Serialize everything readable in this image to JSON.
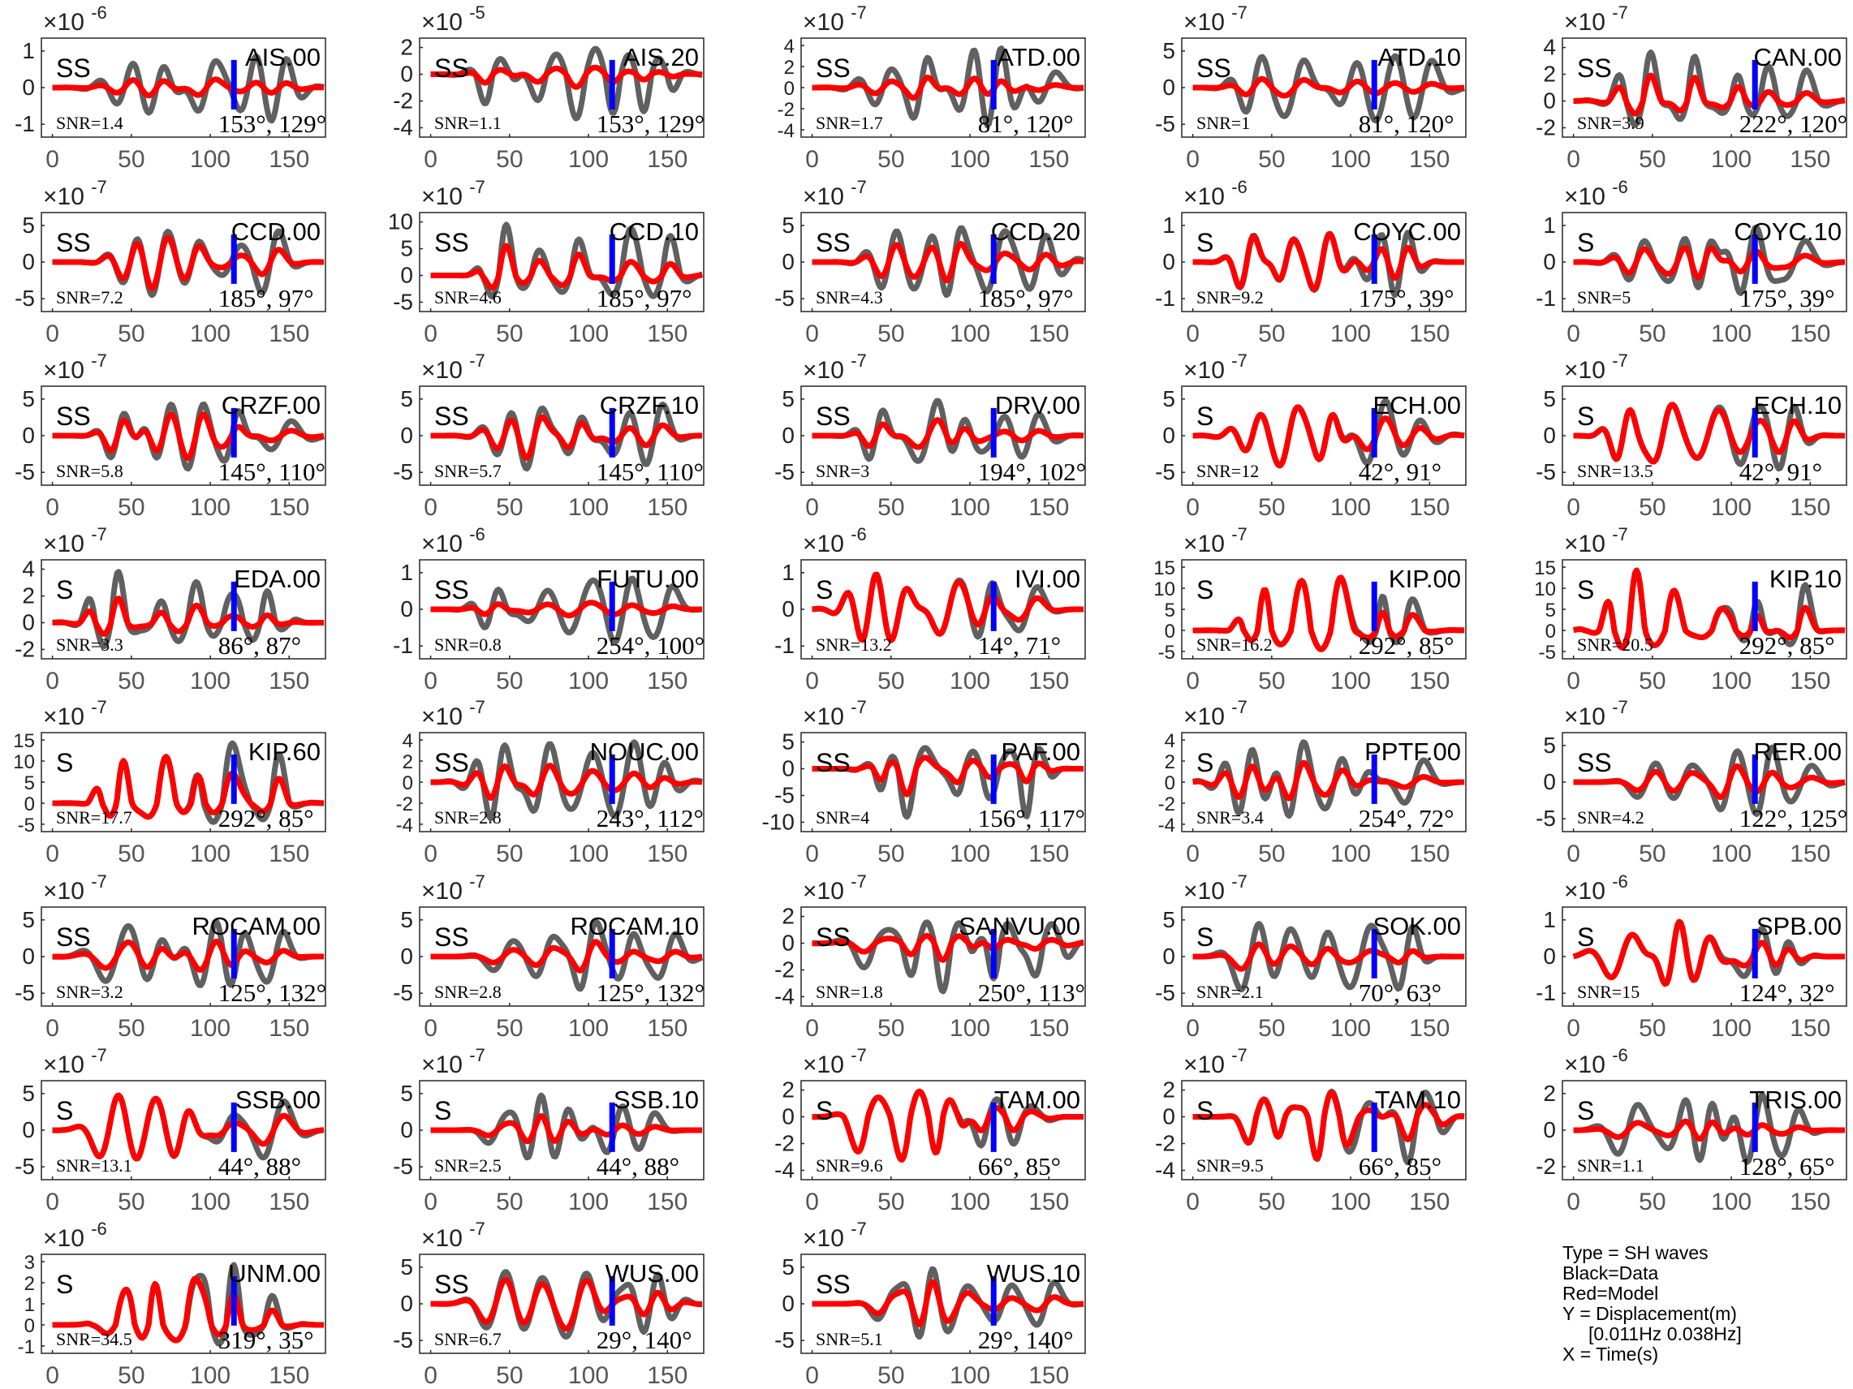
{
  "chart_data": {
    "type": "line",
    "x_ticks": [
      0,
      50,
      100,
      150
    ],
    "xlim": [
      -7,
      173
    ],
    "marker_time": 115,
    "series_colors": {
      "data": "#606060",
      "model": "#ff0000",
      "marker": "#0000ff"
    },
    "panels": [
      {
        "station": "AIS.00",
        "phase": "SS",
        "exp": "-6",
        "yticks": [
          1,
          0,
          -1
        ],
        "snr": "SNR=1.4",
        "angles": "153°, 129°"
      },
      {
        "station": "AIS.20",
        "phase": "SS",
        "exp": "-5",
        "yticks": [
          2,
          0,
          -2,
          -4
        ],
        "snr": "SNR=1.1",
        "angles": "153°, 129°"
      },
      {
        "station": "ATD.00",
        "phase": "SS",
        "exp": "-7",
        "yticks": [
          4,
          2,
          0,
          -2,
          -4
        ],
        "snr": "SNR=1.7",
        "angles": "81°, 120°"
      },
      {
        "station": "ATD.10",
        "phase": "SS",
        "exp": "-7",
        "yticks": [
          5,
          0,
          -5
        ],
        "snr": "SNR=1",
        "angles": "81°, 120°"
      },
      {
        "station": "CAN.00",
        "phase": "SS",
        "exp": "-7",
        "yticks": [
          4,
          2,
          0,
          -2
        ],
        "snr": "SNR=3.9",
        "angles": "222°, 120°"
      },
      {
        "station": "CCD.00",
        "phase": "SS",
        "exp": "-7",
        "yticks": [
          5,
          0,
          -5
        ],
        "snr": "SNR=7.2",
        "angles": "185°, 97°"
      },
      {
        "station": "CCD.10",
        "phase": "SS",
        "exp": "-7",
        "yticks": [
          10,
          5,
          0,
          -5
        ],
        "snr": "SNR=4.6",
        "angles": "185°, 97°"
      },
      {
        "station": "CCD.20",
        "phase": "SS",
        "exp": "-7",
        "yticks": [
          5,
          0,
          -5
        ],
        "snr": "SNR=4.3",
        "angles": "185°, 97°"
      },
      {
        "station": "COYC.00",
        "phase": "S",
        "exp": "-6",
        "yticks": [
          1,
          0,
          -1
        ],
        "snr": "SNR=9.2",
        "angles": "175°, 39°"
      },
      {
        "station": "COYC.10",
        "phase": "S",
        "exp": "-6",
        "yticks": [
          1,
          0,
          -1
        ],
        "snr": "SNR=5",
        "angles": "175°, 39°"
      },
      {
        "station": "CRZF.00",
        "phase": "SS",
        "exp": "-7",
        "yticks": [
          5,
          0,
          -5
        ],
        "snr": "SNR=5.8",
        "angles": "145°, 110°"
      },
      {
        "station": "CRZF.10",
        "phase": "SS",
        "exp": "-7",
        "yticks": [
          5,
          0,
          -5
        ],
        "snr": "SNR=5.7",
        "angles": "145°, 110°"
      },
      {
        "station": "DRV.00",
        "phase": "SS",
        "exp": "-7",
        "yticks": [
          5,
          0,
          -5
        ],
        "snr": "SNR=3",
        "angles": "194°, 102°"
      },
      {
        "station": "ECH.00",
        "phase": "S",
        "exp": "-7",
        "yticks": [
          5,
          0,
          -5
        ],
        "snr": "SNR=12",
        "angles": "42°, 91°"
      },
      {
        "station": "ECH.10",
        "phase": "S",
        "exp": "-7",
        "yticks": [
          5,
          0,
          -5
        ],
        "snr": "SNR=13.5",
        "angles": "42°, 91°"
      },
      {
        "station": "EDA.00",
        "phase": "S",
        "exp": "-7",
        "yticks": [
          4,
          2,
          0,
          -2
        ],
        "snr": "SNR=3.3",
        "angles": "86°, 87°"
      },
      {
        "station": "FUTU.00",
        "phase": "SS",
        "exp": "-6",
        "yticks": [
          1,
          0,
          -1
        ],
        "snr": "SNR=0.8",
        "angles": "254°, 100°"
      },
      {
        "station": "IVI.00",
        "phase": "S",
        "exp": "-6",
        "yticks": [
          1,
          0,
          -1
        ],
        "snr": "SNR=13.2",
        "angles": "14°, 71°"
      },
      {
        "station": "KIP.00",
        "phase": "S",
        "exp": "-7",
        "yticks": [
          15,
          10,
          5,
          0,
          -5
        ],
        "snr": "SNR=16.2",
        "angles": "292°, 85°"
      },
      {
        "station": "KIP.10",
        "phase": "S",
        "exp": "-7",
        "yticks": [
          15,
          10,
          5,
          0,
          -5
        ],
        "snr": "SNR=20.5",
        "angles": "292°, 85°"
      },
      {
        "station": "KIP.60",
        "phase": "S",
        "exp": "-7",
        "yticks": [
          15,
          10,
          5,
          0,
          -5
        ],
        "snr": "SNR=17.7",
        "angles": "292°, 85°"
      },
      {
        "station": "NOUC.00",
        "phase": "SS",
        "exp": "-7",
        "yticks": [
          4,
          2,
          0,
          -2,
          -4
        ],
        "snr": "SNR=2.8",
        "angles": "243°, 112°"
      },
      {
        "station": "PAF.00",
        "phase": "SS",
        "exp": "-7",
        "yticks": [
          5,
          0,
          -5,
          -10
        ],
        "snr": "SNR=4",
        "angles": "156°, 117°"
      },
      {
        "station": "PPTF.00",
        "phase": "S",
        "exp": "-7",
        "yticks": [
          4,
          2,
          0,
          -2,
          -4
        ],
        "snr": "SNR=3.4",
        "angles": "254°, 72°"
      },
      {
        "station": "RER.00",
        "phase": "SS",
        "exp": "-7",
        "yticks": [
          5,
          0,
          -5
        ],
        "snr": "SNR=4.2",
        "angles": "122°, 125°"
      },
      {
        "station": "ROCAM.00",
        "phase": "SS",
        "exp": "-7",
        "yticks": [
          5,
          0,
          -5
        ],
        "snr": "SNR=3.2",
        "angles": "125°, 132°"
      },
      {
        "station": "ROCAM.10",
        "phase": "SS",
        "exp": "-7",
        "yticks": [
          5,
          0,
          -5
        ],
        "snr": "SNR=2.8",
        "angles": "125°, 132°"
      },
      {
        "station": "SANVU.00",
        "phase": "SS",
        "exp": "-7",
        "yticks": [
          2,
          0,
          -2,
          -4
        ],
        "snr": "SNR=1.8",
        "angles": "250°, 113°"
      },
      {
        "station": "SOK.00",
        "phase": "S",
        "exp": "-7",
        "yticks": [
          5,
          0,
          -5
        ],
        "snr": "SNR=2.1",
        "angles": "70°, 63°"
      },
      {
        "station": "SPB.00",
        "phase": "S",
        "exp": "-6",
        "yticks": [
          1,
          0,
          -1
        ],
        "snr": "SNR=15",
        "angles": "124°, 32°"
      },
      {
        "station": "SSB.00",
        "phase": "S",
        "exp": "-7",
        "yticks": [
          5,
          0,
          -5
        ],
        "snr": "SNR=13.1",
        "angles": "44°, 88°"
      },
      {
        "station": "SSB.10",
        "phase": "S",
        "exp": "-7",
        "yticks": [
          5,
          0,
          -5
        ],
        "snr": "SNR=2.5",
        "angles": "44°, 88°"
      },
      {
        "station": "TAM.00",
        "phase": "S",
        "exp": "-7",
        "yticks": [
          2,
          0,
          -2,
          -4
        ],
        "snr": "SNR=9.6",
        "angles": "66°, 85°"
      },
      {
        "station": "TAM.10",
        "phase": "S",
        "exp": "-7",
        "yticks": [
          2,
          0,
          -2,
          -4
        ],
        "snr": "SNR=9.5",
        "angles": "66°, 85°"
      },
      {
        "station": "TRIS.00",
        "phase": "S",
        "exp": "-6",
        "yticks": [
          2,
          0,
          -2
        ],
        "snr": "SNR=1.1",
        "angles": "128°, 65°"
      },
      {
        "station": "UNM.00",
        "phase": "S",
        "exp": "-6",
        "yticks": [
          3,
          2,
          1,
          0,
          -1
        ],
        "snr": "SNR=34.5",
        "angles": "319°, 35°"
      },
      {
        "station": "WUS.00",
        "phase": "SS",
        "exp": "-7",
        "yticks": [
          5,
          0,
          -5
        ],
        "snr": "SNR=6.7",
        "angles": "29°, 140°"
      },
      {
        "station": "WUS.10",
        "phase": "SS",
        "exp": "-7",
        "yticks": [
          5,
          0,
          -5
        ],
        "snr": "SNR=5.1",
        "angles": "29°, 140°"
      }
    ],
    "legend": {
      "type": "Type = SH waves",
      "black": "Black=Data",
      "red": "Red=Model",
      "y": "Y = Displacement(m)",
      "band": "     [0.011Hz 0.038Hz]",
      "x": "X = Time(s)"
    }
  }
}
